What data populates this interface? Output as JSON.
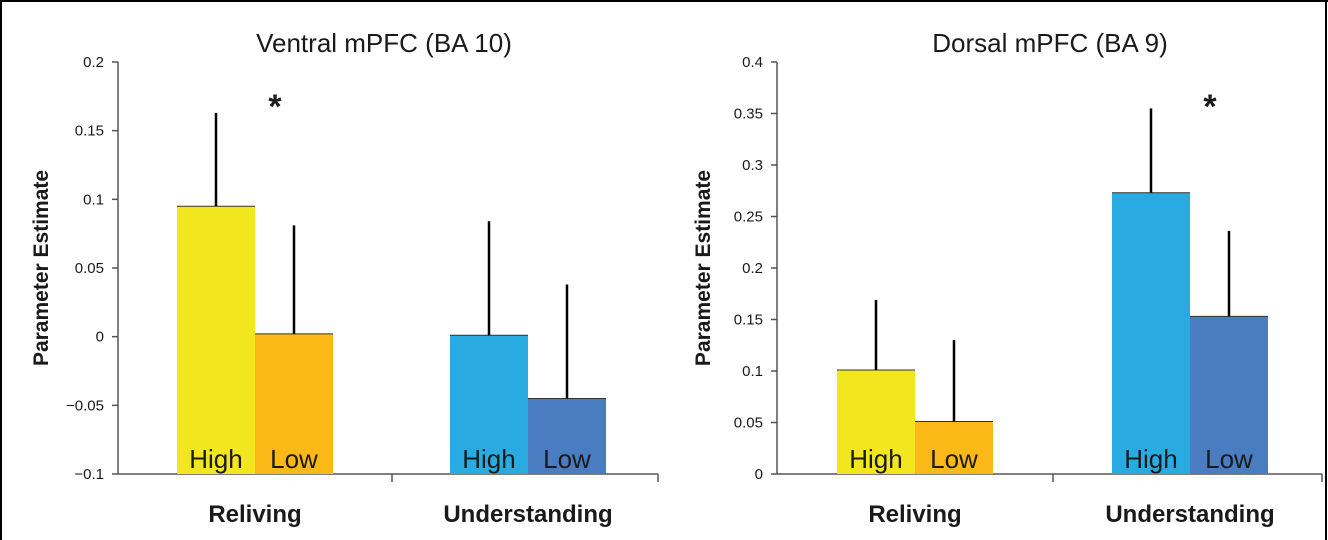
{
  "chart_data": [
    {
      "type": "bar",
      "title": "Ventral mPFC (BA 10)",
      "ylabel": "Parameter Estimate",
      "ylim": [
        -0.1,
        0.2
      ],
      "yticks": [
        -0.1,
        -0.05,
        0,
        0.05,
        0.1,
        0.15,
        0.2
      ],
      "ytick_labels": [
        "−0.1",
        "−0.05",
        "0",
        "0.05",
        "0.1",
        "0.15",
        "0.2"
      ],
      "groups": [
        {
          "label": "Reliving",
          "bars": [
            {
              "label": "High",
              "value": 0.095,
              "error": 0.068,
              "color": "#f2e61e"
            },
            {
              "label": "Low",
              "value": 0.002,
              "error": 0.079,
              "color": "#fbb917"
            }
          ],
          "annotation": "*"
        },
        {
          "label": "Understanding",
          "bars": [
            {
              "label": "High",
              "value": 0.001,
              "error": 0.083,
              "color": "#29abe2"
            },
            {
              "label": "Low",
              "value": -0.045,
              "error": 0.083,
              "color": "#4a7cc2"
            }
          ],
          "annotation": ""
        }
      ]
    },
    {
      "type": "bar",
      "title": "Dorsal mPFC (BA 9)",
      "ylabel": "Parameter Estimate",
      "ylim": [
        0,
        0.4
      ],
      "yticks": [
        0,
        0.05,
        0.1,
        0.15,
        0.2,
        0.25,
        0.3,
        0.35,
        0.4
      ],
      "ytick_labels": [
        "0",
        "0.05",
        "0.1",
        "0.15",
        "0.2",
        "0.25",
        "0.3",
        "0.35",
        "0.4"
      ],
      "groups": [
        {
          "label": "Reliving",
          "bars": [
            {
              "label": "High",
              "value": 0.101,
              "error": 0.068,
              "color": "#f2e61e"
            },
            {
              "label": "Low",
              "value": 0.051,
              "error": 0.079,
              "color": "#fbb917"
            }
          ],
          "annotation": ""
        },
        {
          "label": "Understanding",
          "bars": [
            {
              "label": "High",
              "value": 0.273,
              "error": 0.082,
              "color": "#29abe2"
            },
            {
              "label": "Low",
              "value": 0.153,
              "error": 0.083,
              "color": "#4a7cc2"
            }
          ],
          "annotation": "*"
        }
      ]
    }
  ]
}
